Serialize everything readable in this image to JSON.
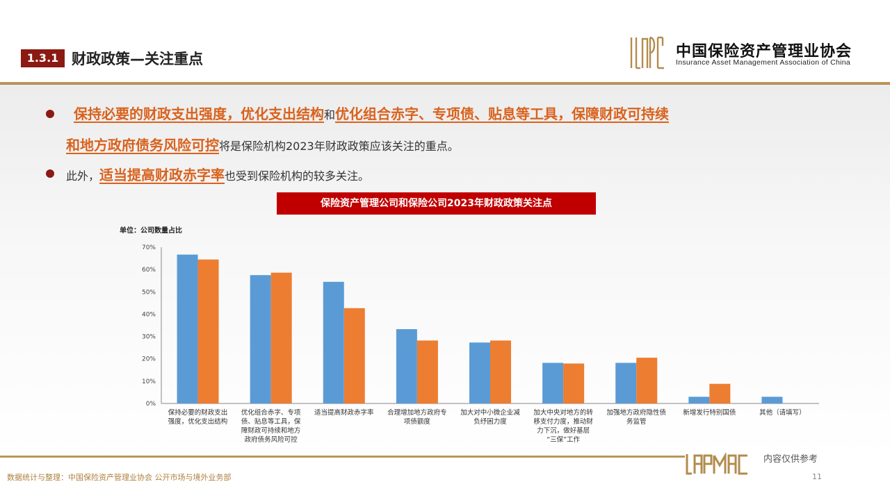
{
  "header": {
    "section_number": "1.3.1",
    "section_title": "财政政策—关注重点",
    "logo_cn": "中国保险资产管理业协会",
    "logo_en": "Insurance Asset Management Association of China"
  },
  "bullets": [
    {
      "hl1": "保持必要的财政支出强度，优化支出结构",
      "mid": "和",
      "hl2": "优化组合赤字、专项债、贴息等工具，保障财政可持续",
      "hl3": "和地方政府债务风险可控",
      "tail": "将是保险机构2023年财政政策应该关注的重点。"
    },
    {
      "pre": "此外，",
      "hl": "适当提高财政赤字率",
      "tail": "也受到保险机构的较多关注。"
    }
  ],
  "chart_data": {
    "type": "bar",
    "title": "保险资产管理公司和保险公司2023年财政政策关注点",
    "unit_label": "单位：公司数量占比",
    "categories": [
      [
        "保持必要的财政支出",
        "强度，优化支出结构"
      ],
      [
        "优化组合赤字、专项",
        "债、贴息等工具，保",
        "障财政可持续和地方",
        "政府债务风险可控"
      ],
      [
        "适当提高财政赤字率"
      ],
      [
        "合理增加地方政府专",
        "项债额度"
      ],
      [
        "加大对中小微企业减",
        "负纾困力度"
      ],
      [
        "加大中央对地方的转",
        "移支付力度，推动财",
        "力下沉，做好基层",
        "“三保”工作"
      ],
      [
        "加强地方政府隐性债",
        "务监管"
      ],
      [
        "新增发行特别国债"
      ],
      [
        "其他（请填写）"
      ]
    ],
    "series": [
      {
        "color": "#5b9bd5",
        "values": [
          66.7,
          57.5,
          54.5,
          33.3,
          27.3,
          18.2,
          18.2,
          3.0,
          3.0
        ]
      },
      {
        "color": "#ed7d31",
        "values": [
          64.5,
          58.6,
          42.7,
          28.2,
          28.2,
          17.9,
          20.5,
          8.8,
          0
        ]
      }
    ],
    "yticks": [
      "0%",
      "10%",
      "20%",
      "30%",
      "40%",
      "50%",
      "60%",
      "70%"
    ],
    "ylim": [
      0,
      70
    ],
    "grid": false,
    "legend": "none"
  },
  "footer": {
    "reference_note": "内容仅供参考",
    "page_number": "11",
    "source": "数据统计与整理：中国保险资产管理业协会 公开市场与境外业务部"
  },
  "colors": {
    "brand_red": "#8b1a12",
    "title_red": "#c00000",
    "highlight_orange": "#d9621d",
    "gold": "#b89559"
  }
}
